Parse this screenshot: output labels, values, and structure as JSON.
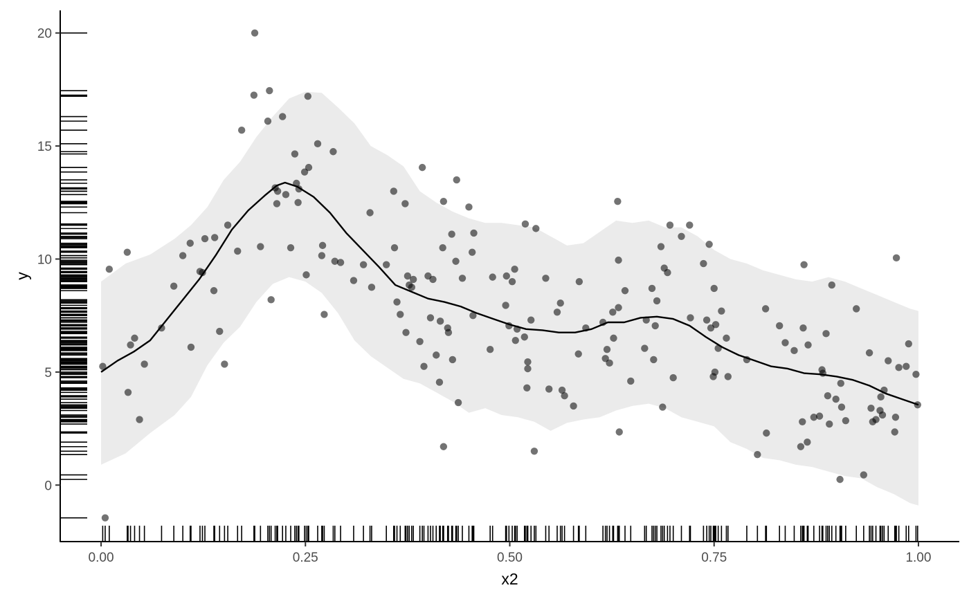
{
  "chart_data": {
    "type": "scatter",
    "title": "",
    "xlabel": "x2",
    "ylabel": "y",
    "xlim": [
      -0.05,
      1.05
    ],
    "ylim": [
      -2.5,
      21
    ],
    "grid": false,
    "x_ticks": [
      {
        "value": 0.0,
        "label": "0.00"
      },
      {
        "value": 0.25,
        "label": "0.25"
      },
      {
        "value": 0.5,
        "label": "0.50"
      },
      {
        "value": 0.75,
        "label": "0.75"
      },
      {
        "value": 1.0,
        "label": "1.00"
      }
    ],
    "y_ticks": [
      {
        "value": 0,
        "label": "0"
      },
      {
        "value": 5,
        "label": "5"
      },
      {
        "value": 10,
        "label": "10"
      },
      {
        "value": 15,
        "label": "15"
      },
      {
        "value": 20,
        "label": "20"
      }
    ],
    "colors": {
      "points": "#000000",
      "points_opacity": 0.55,
      "line": "#000000",
      "ribbon": "#ebebeb",
      "rug": "#000000",
      "axis": "#000000"
    },
    "points": [
      [
        0.002,
        5.25
      ],
      [
        0.005,
        -1.45
      ],
      [
        0.01,
        9.55
      ],
      [
        0.032,
        10.3
      ],
      [
        0.033,
        4.1
      ],
      [
        0.036,
        6.2
      ],
      [
        0.041,
        6.5
      ],
      [
        0.047,
        2.9
      ],
      [
        0.053,
        5.35
      ],
      [
        0.074,
        6.95
      ],
      [
        0.089,
        8.8
      ],
      [
        0.1,
        10.15
      ],
      [
        0.109,
        10.7
      ],
      [
        0.11,
        6.1
      ],
      [
        0.121,
        9.45
      ],
      [
        0.124,
        9.4
      ],
      [
        0.127,
        10.9
      ],
      [
        0.138,
        8.6
      ],
      [
        0.139,
        10.95
      ],
      [
        0.145,
        6.8
      ],
      [
        0.151,
        5.35
      ],
      [
        0.155,
        11.5
      ],
      [
        0.167,
        10.35
      ],
      [
        0.172,
        15.7
      ],
      [
        0.187,
        17.25
      ],
      [
        0.188,
        20.0
      ],
      [
        0.195,
        10.55
      ],
      [
        0.204,
        16.1
      ],
      [
        0.206,
        17.45
      ],
      [
        0.208,
        8.2
      ],
      [
        0.213,
        13.15
      ],
      [
        0.215,
        12.45
      ],
      [
        0.216,
        13.0
      ],
      [
        0.222,
        16.3
      ],
      [
        0.226,
        12.85
      ],
      [
        0.232,
        10.5
      ],
      [
        0.237,
        14.65
      ],
      [
        0.239,
        13.35
      ],
      [
        0.241,
        12.5
      ],
      [
        0.242,
        13.1
      ],
      [
        0.249,
        13.85
      ],
      [
        0.251,
        9.3
      ],
      [
        0.253,
        17.2
      ],
      [
        0.254,
        14.05
      ],
      [
        0.265,
        15.1
      ],
      [
        0.27,
        10.15
      ],
      [
        0.271,
        10.6
      ],
      [
        0.273,
        7.55
      ],
      [
        0.284,
        14.75
      ],
      [
        0.286,
        9.9
      ],
      [
        0.293,
        9.85
      ],
      [
        0.309,
        9.05
      ],
      [
        0.321,
        9.75
      ],
      [
        0.329,
        12.05
      ],
      [
        0.331,
        8.75
      ],
      [
        0.349,
        9.75
      ],
      [
        0.358,
        13.0
      ],
      [
        0.359,
        10.5
      ],
      [
        0.362,
        8.1
      ],
      [
        0.366,
        7.55
      ],
      [
        0.372,
        12.45
      ],
      [
        0.373,
        6.75
      ],
      [
        0.375,
        9.25
      ],
      [
        0.377,
        8.85
      ],
      [
        0.38,
        8.75
      ],
      [
        0.382,
        9.1
      ],
      [
        0.39,
        6.35
      ],
      [
        0.393,
        14.05
      ],
      [
        0.395,
        5.25
      ],
      [
        0.4,
        9.25
      ],
      [
        0.403,
        7.4
      ],
      [
        0.406,
        9.1
      ],
      [
        0.41,
        5.75
      ],
      [
        0.414,
        4.55
      ],
      [
        0.415,
        7.25
      ],
      [
        0.418,
        10.5
      ],
      [
        0.419,
        12.55
      ],
      [
        0.419,
        1.7
      ],
      [
        0.424,
        6.95
      ],
      [
        0.425,
        6.75
      ],
      [
        0.429,
        11.1
      ],
      [
        0.43,
        5.55
      ],
      [
        0.434,
        9.9
      ],
      [
        0.435,
        13.5
      ],
      [
        0.437,
        3.65
      ],
      [
        0.442,
        9.15
      ],
      [
        0.45,
        12.3
      ],
      [
        0.454,
        10.3
      ],
      [
        0.455,
        7.5
      ],
      [
        0.456,
        11.15
      ],
      [
        0.476,
        6.0
      ],
      [
        0.479,
        9.2
      ],
      [
        0.495,
        7.95
      ],
      [
        0.496,
        9.25
      ],
      [
        0.499,
        7.05
      ],
      [
        0.503,
        9.0
      ],
      [
        0.506,
        9.55
      ],
      [
        0.507,
        6.4
      ],
      [
        0.509,
        6.9
      ],
      [
        0.518,
        6.55
      ],
      [
        0.519,
        11.55
      ],
      [
        0.521,
        4.3
      ],
      [
        0.522,
        5.45
      ],
      [
        0.522,
        5.15
      ],
      [
        0.526,
        7.3
      ],
      [
        0.53,
        1.5
      ],
      [
        0.532,
        11.35
      ],
      [
        0.544,
        9.15
      ],
      [
        0.548,
        4.25
      ],
      [
        0.558,
        7.65
      ],
      [
        0.562,
        8.05
      ],
      [
        0.564,
        4.2
      ],
      [
        0.567,
        3.95
      ],
      [
        0.578,
        3.5
      ],
      [
        0.584,
        5.8
      ],
      [
        0.585,
        9.0
      ],
      [
        0.593,
        6.95
      ],
      [
        0.614,
        7.2
      ],
      [
        0.617,
        5.6
      ],
      [
        0.619,
        6.0
      ],
      [
        0.622,
        5.4
      ],
      [
        0.626,
        7.65
      ],
      [
        0.627,
        6.5
      ],
      [
        0.632,
        12.55
      ],
      [
        0.633,
        9.95
      ],
      [
        0.633,
        7.85
      ],
      [
        0.634,
        2.35
      ],
      [
        0.641,
        8.6
      ],
      [
        0.648,
        4.6
      ],
      [
        0.665,
        6.05
      ],
      [
        0.667,
        7.3
      ],
      [
        0.674,
        8.7
      ],
      [
        0.676,
        5.55
      ],
      [
        0.678,
        7.05
      ],
      [
        0.68,
        8.15
      ],
      [
        0.685,
        10.55
      ],
      [
        0.687,
        3.45
      ],
      [
        0.689,
        9.6
      ],
      [
        0.693,
        9.4
      ],
      [
        0.696,
        11.5
      ],
      [
        0.7,
        4.75
      ],
      [
        0.71,
        11.0
      ],
      [
        0.72,
        11.5
      ],
      [
        0.721,
        7.4
      ],
      [
        0.737,
        9.8
      ],
      [
        0.741,
        7.3
      ],
      [
        0.744,
        10.65
      ],
      [
        0.746,
        6.95
      ],
      [
        0.749,
        4.8
      ],
      [
        0.75,
        8.7
      ],
      [
        0.751,
        5.0
      ],
      [
        0.752,
        7.1
      ],
      [
        0.755,
        6.05
      ],
      [
        0.759,
        7.7
      ],
      [
        0.765,
        6.5
      ],
      [
        0.767,
        4.8
      ],
      [
        0.79,
        5.55
      ],
      [
        0.803,
        1.35
      ],
      [
        0.813,
        7.8
      ],
      [
        0.814,
        2.3
      ],
      [
        0.83,
        7.05
      ],
      [
        0.837,
        6.3
      ],
      [
        0.848,
        5.95
      ],
      [
        0.856,
        1.7
      ],
      [
        0.858,
        2.8
      ],
      [
        0.859,
        6.95
      ],
      [
        0.86,
        9.75
      ],
      [
        0.864,
        1.9
      ],
      [
        0.865,
        6.2
      ],
      [
        0.872,
        3.0
      ],
      [
        0.879,
        3.05
      ],
      [
        0.882,
        5.1
      ],
      [
        0.883,
        4.95
      ],
      [
        0.887,
        6.7
      ],
      [
        0.889,
        3.95
      ],
      [
        0.891,
        2.7
      ],
      [
        0.894,
        8.85
      ],
      [
        0.899,
        3.8
      ],
      [
        0.904,
        0.25
      ],
      [
        0.905,
        4.5
      ],
      [
        0.906,
        3.45
      ],
      [
        0.911,
        2.85
      ],
      [
        0.924,
        7.8
      ],
      [
        0.933,
        0.45
      ],
      [
        0.94,
        5.85
      ],
      [
        0.942,
        3.4
      ],
      [
        0.944,
        2.8
      ],
      [
        0.948,
        2.9
      ],
      [
        0.953,
        3.3
      ],
      [
        0.954,
        3.9
      ],
      [
        0.956,
        3.1
      ],
      [
        0.958,
        4.2
      ],
      [
        0.963,
        5.5
      ],
      [
        0.971,
        2.35
      ],
      [
        0.972,
        3.0
      ],
      [
        0.973,
        10.05
      ],
      [
        0.976,
        5.2
      ],
      [
        0.985,
        5.25
      ],
      [
        0.988,
        6.25
      ],
      [
        0.997,
        4.9
      ],
      [
        0.999,
        3.55
      ]
    ],
    "smooth_line": [
      [
        0.0,
        5.0
      ],
      [
        0.02,
        5.5
      ],
      [
        0.04,
        5.9
      ],
      [
        0.06,
        6.4
      ],
      [
        0.08,
        7.3
      ],
      [
        0.1,
        8.2
      ],
      [
        0.12,
        9.1
      ],
      [
        0.14,
        10.15
      ],
      [
        0.16,
        11.3
      ],
      [
        0.18,
        12.15
      ],
      [
        0.2,
        12.8
      ],
      [
        0.215,
        13.25
      ],
      [
        0.225,
        13.38
      ],
      [
        0.24,
        13.2
      ],
      [
        0.26,
        12.75
      ],
      [
        0.28,
        12.05
      ],
      [
        0.3,
        11.15
      ],
      [
        0.32,
        10.4
      ],
      [
        0.34,
        9.65
      ],
      [
        0.36,
        8.85
      ],
      [
        0.38,
        8.55
      ],
      [
        0.4,
        8.25
      ],
      [
        0.42,
        8.1
      ],
      [
        0.44,
        7.9
      ],
      [
        0.46,
        7.6
      ],
      [
        0.48,
        7.35
      ],
      [
        0.5,
        7.1
      ],
      [
        0.52,
        6.9
      ],
      [
        0.54,
        6.85
      ],
      [
        0.56,
        6.75
      ],
      [
        0.58,
        6.75
      ],
      [
        0.6,
        6.9
      ],
      [
        0.62,
        7.2
      ],
      [
        0.64,
        7.2
      ],
      [
        0.66,
        7.4
      ],
      [
        0.68,
        7.45
      ],
      [
        0.7,
        7.35
      ],
      [
        0.72,
        7.05
      ],
      [
        0.74,
        6.55
      ],
      [
        0.76,
        6.1
      ],
      [
        0.78,
        5.75
      ],
      [
        0.8,
        5.5
      ],
      [
        0.82,
        5.25
      ],
      [
        0.84,
        5.15
      ],
      [
        0.86,
        4.95
      ],
      [
        0.88,
        4.9
      ],
      [
        0.9,
        4.8
      ],
      [
        0.92,
        4.65
      ],
      [
        0.94,
        4.4
      ],
      [
        0.96,
        4.05
      ],
      [
        0.98,
        3.8
      ],
      [
        1.0,
        3.55
      ]
    ],
    "ribbon_upper": [
      [
        0.0,
        9.0
      ],
      [
        0.03,
        9.8
      ],
      [
        0.06,
        10.2
      ],
      [
        0.09,
        10.9
      ],
      [
        0.11,
        11.5
      ],
      [
        0.13,
        12.3
      ],
      [
        0.15,
        13.5
      ],
      [
        0.17,
        14.3
      ],
      [
        0.19,
        15.4
      ],
      [
        0.21,
        16.3
      ],
      [
        0.23,
        17.1
      ],
      [
        0.25,
        17.4
      ],
      [
        0.27,
        17.35
      ],
      [
        0.29,
        16.7
      ],
      [
        0.31,
        16.0
      ],
      [
        0.33,
        15.0
      ],
      [
        0.35,
        14.6
      ],
      [
        0.37,
        14.1
      ],
      [
        0.39,
        13.0
      ],
      [
        0.41,
        12.5
      ],
      [
        0.43,
        12.1
      ],
      [
        0.45,
        11.8
      ],
      [
        0.47,
        11.6
      ],
      [
        0.49,
        11.6
      ],
      [
        0.51,
        11.5
      ],
      [
        0.53,
        11.4
      ],
      [
        0.55,
        11.0
      ],
      [
        0.57,
        10.6
      ],
      [
        0.59,
        10.7
      ],
      [
        0.61,
        11.2
      ],
      [
        0.63,
        11.7
      ],
      [
        0.65,
        11.6
      ],
      [
        0.67,
        11.7
      ],
      [
        0.69,
        11.4
      ],
      [
        0.71,
        11.4
      ],
      [
        0.73,
        11.0
      ],
      [
        0.75,
        10.4
      ],
      [
        0.77,
        10.0
      ],
      [
        0.79,
        9.8
      ],
      [
        0.81,
        9.5
      ],
      [
        0.83,
        9.3
      ],
      [
        0.85,
        9.1
      ],
      [
        0.87,
        9.0
      ],
      [
        0.89,
        9.2
      ],
      [
        0.91,
        9.0
      ],
      [
        0.93,
        8.7
      ],
      [
        0.95,
        8.4
      ],
      [
        0.97,
        8.1
      ],
      [
        0.99,
        7.8
      ],
      [
        1.0,
        7.7
      ]
    ],
    "ribbon_lower": [
      [
        0.0,
        0.9
      ],
      [
        0.03,
        1.4
      ],
      [
        0.06,
        2.3
      ],
      [
        0.09,
        3.1
      ],
      [
        0.11,
        3.9
      ],
      [
        0.13,
        5.3
      ],
      [
        0.15,
        6.3
      ],
      [
        0.17,
        7.0
      ],
      [
        0.19,
        8.1
      ],
      [
        0.21,
        8.9
      ],
      [
        0.23,
        9.2
      ],
      [
        0.25,
        9.0
      ],
      [
        0.27,
        8.5
      ],
      [
        0.29,
        7.6
      ],
      [
        0.31,
        6.4
      ],
      [
        0.33,
        5.7
      ],
      [
        0.35,
        5.2
      ],
      [
        0.37,
        4.7
      ],
      [
        0.39,
        4.5
      ],
      [
        0.41,
        4.1
      ],
      [
        0.43,
        3.7
      ],
      [
        0.45,
        3.2
      ],
      [
        0.47,
        3.4
      ],
      [
        0.49,
        3.1
      ],
      [
        0.51,
        3.0
      ],
      [
        0.53,
        2.8
      ],
      [
        0.55,
        2.4
      ],
      [
        0.57,
        2.75
      ],
      [
        0.59,
        2.9
      ],
      [
        0.61,
        3.0
      ],
      [
        0.63,
        3.3
      ],
      [
        0.65,
        3.5
      ],
      [
        0.67,
        3.6
      ],
      [
        0.69,
        3.4
      ],
      [
        0.71,
        3.0
      ],
      [
        0.73,
        2.8
      ],
      [
        0.75,
        2.6
      ],
      [
        0.77,
        1.9
      ],
      [
        0.79,
        1.6
      ],
      [
        0.81,
        1.2
      ],
      [
        0.83,
        1.1
      ],
      [
        0.85,
        0.9
      ],
      [
        0.87,
        0.8
      ],
      [
        0.89,
        0.6
      ],
      [
        0.91,
        0.4
      ],
      [
        0.93,
        0.3
      ],
      [
        0.95,
        -0.1
      ],
      [
        0.97,
        -0.4
      ],
      [
        0.99,
        -0.8
      ],
      [
        1.0,
        -0.9
      ]
    ]
  }
}
